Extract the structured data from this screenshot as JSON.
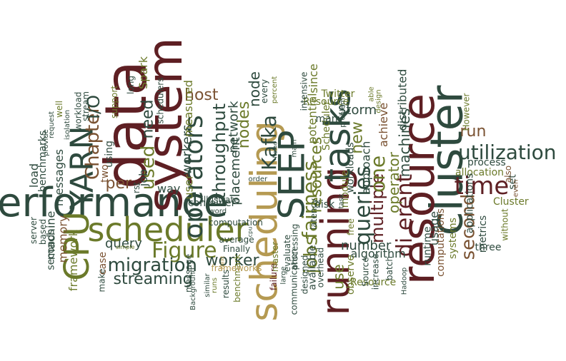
{
  "palette": {
    "dark_green": "#2e4a3e",
    "olive": "#6b7a2a",
    "gold": "#b59a52",
    "maroon": "#5e1f23",
    "brown": "#7a5232",
    "light_gold": "#c9b06a"
  },
  "words": [
    {
      "id": "performance",
      "text": "performance"
    },
    {
      "id": "scheduler",
      "text": "scheduler"
    },
    {
      "id": "system",
      "text": "system"
    },
    {
      "id": "data",
      "text": "data"
    },
    {
      "id": "cluster",
      "text": "cluster"
    },
    {
      "id": "resource",
      "text": "resource"
    },
    {
      "id": "scheduling",
      "text": "scheduling"
    },
    {
      "id": "running",
      "text": "running"
    },
    {
      "id": "SEEP",
      "text": "SEEP"
    },
    {
      "id": "tasks",
      "text": "tasks"
    },
    {
      "id": "CPU",
      "text": "CPU"
    },
    {
      "id": "YARN",
      "text": "YARN"
    },
    {
      "id": "utilization",
      "text": "utilization"
    },
    {
      "id": "time",
      "text": "time"
    },
    {
      "id": "operators",
      "text": "operators"
    },
    {
      "id": "Figure",
      "text": "Figure"
    },
    {
      "id": "migration",
      "text": "migration"
    },
    {
      "id": "Chapter",
      "text": "Chapter"
    },
    {
      "id": "I/O",
      "text": "I/O"
    },
    {
      "id": "queries",
      "text": "queries"
    },
    {
      "id": "jobs",
      "text": "jobs"
    },
    {
      "id": "fairness",
      "text": "fairness"
    },
    {
      "id": "Kafka",
      "text": "Kafka"
    },
    {
      "id": "throughput",
      "text": "throughput"
    },
    {
      "id": "di_erent",
      "text": "di erent"
    },
    {
      "id": "multiple",
      "text": "multiple"
    },
    {
      "id": "one",
      "text": "one"
    },
    {
      "id": "used",
      "text": "used"
    },
    {
      "id": "second",
      "text": "second"
    },
    {
      "id": "run",
      "text": "run"
    },
    {
      "id": "streaming",
      "text": "streaming"
    },
    {
      "id": "query",
      "text": "query"
    },
    {
      "id": "worker",
      "text": "worker"
    },
    {
      "id": "host",
      "text": "host"
    },
    {
      "id": "nodes",
      "text": "nodes"
    },
    {
      "id": "node",
      "text": "node"
    },
    {
      "id": "new",
      "text": "new"
    },
    {
      "id": "Storm",
      "text": "Storm"
    },
    {
      "id": "per",
      "text": "per"
    },
    {
      "id": "need",
      "text": "need"
    },
    {
      "id": "resources",
      "text": "resources"
    },
    {
      "id": "operator",
      "text": "operator"
    },
    {
      "id": "machines",
      "text": "machines"
    },
    {
      "id": "number",
      "text": "number"
    },
    {
      "id": "use",
      "text": "use"
    },
    {
      "id": "placement",
      "text": "placement"
    },
    {
      "id": "network",
      "text": "network"
    },
    {
      "id": "workers",
      "text": "workers"
    },
    {
      "id": "measured",
      "text": "measured"
    },
    {
      "id": "user",
      "text": "user"
    },
    {
      "id": "distributed",
      "text": "distributed"
    },
    {
      "id": "achieve",
      "text": "achieve"
    },
    {
      "id": "approach",
      "text": "approach"
    },
    {
      "id": "workloads",
      "text": "workloads"
    },
    {
      "id": "potential",
      "text": "potential"
    },
    {
      "id": "since",
      "text": "since"
    },
    {
      "id": "Resource_mid",
      "text": "Resource"
    },
    {
      "id": "Resource_bot",
      "text": "Resource"
    },
    {
      "id": "Scheduler",
      "text": "Scheduler"
    },
    {
      "id": "Twitter",
      "text": "Twitter"
    },
    {
      "id": "process",
      "text": "process"
    },
    {
      "id": "allocation",
      "text": "allocation"
    },
    {
      "id": "usage",
      "text": "usage"
    },
    {
      "id": "metrics",
      "text": "metrics"
    },
    {
      "id": "three",
      "text": "three"
    },
    {
      "id": "applications",
      "text": "applications"
    },
    {
      "id": "Cluster",
      "text": "Cluster"
    },
    {
      "id": "However",
      "text": "However"
    },
    {
      "id": "computations",
      "text": "computations"
    },
    {
      "id": "systems",
      "text": "systems"
    },
    {
      "id": "set",
      "text": "set"
    },
    {
      "id": "also",
      "text": "also"
    },
    {
      "id": "without",
      "text": "without"
    },
    {
      "id": "even",
      "text": "even"
    },
    {
      "id": "runtime",
      "text": "runtime"
    },
    {
      "id": "algorithm",
      "text": "algorithm"
    },
    {
      "id": "observe",
      "text": "observe"
    },
    {
      "id": "Source",
      "text": "Source"
    },
    {
      "id": "increase",
      "text": "increase"
    },
    {
      "id": "batch",
      "text": "batch"
    },
    {
      "id": "Hadoop",
      "text": "Hadoop"
    },
    {
      "id": "disk",
      "text": "disk"
    },
    {
      "id": "available",
      "text": "available"
    },
    {
      "id": "failure",
      "text": "failure"
    },
    {
      "id": "overhead",
      "text": "overhead"
    },
    {
      "id": "master",
      "text": "master"
    },
    {
      "id": "evaluate",
      "text": "evaluate"
    },
    {
      "id": "large",
      "text": "large"
    },
    {
      "id": "processing",
      "text": "processing"
    },
    {
      "id": "communication",
      "text": "communication"
    },
    {
      "id": "designed",
      "text": "designed"
    },
    {
      "id": "main",
      "text": "main"
    },
    {
      "id": "latency",
      "text": "latency"
    },
    {
      "id": "many",
      "text": "many"
    },
    {
      "id": "module",
      "text": "module"
    },
    {
      "id": "intensive",
      "text": "intensive"
    },
    {
      "id": "free",
      "text": "free"
    },
    {
      "id": "task",
      "text": "task"
    },
    {
      "id": "problem",
      "text": "problem"
    },
    {
      "id": "able",
      "text": "able"
    },
    {
      "id": "design",
      "text": "design"
    },
    {
      "id": "percent",
      "text": "percent"
    },
    {
      "id": "Naiad",
      "text": "Naiad"
    },
    {
      "id": "every",
      "text": "every"
    },
    {
      "id": "order",
      "text": "order"
    },
    {
      "id": "Finally",
      "text": "Finally"
    },
    {
      "id": "average",
      "text": "average"
    },
    {
      "id": "computation",
      "text": "computation"
    },
    {
      "id": "word",
      "text": "word"
    },
    {
      "id": "container",
      "text": "container"
    },
    {
      "id": "illustrate",
      "text": "illustrate"
    },
    {
      "id": "cpu",
      "text": "cpu"
    },
    {
      "id": "Next",
      "text": "Next"
    },
    {
      "id": "benchmark",
      "text": "benchmark"
    },
    {
      "id": "frameworks",
      "text": "frameworks"
    },
    {
      "id": "results",
      "text": "results"
    },
    {
      "id": "runs",
      "text": "runs"
    },
    {
      "id": "similar",
      "text": "similar"
    },
    {
      "id": "Background",
      "text": "Background"
    },
    {
      "id": "message",
      "text": "message"
    },
    {
      "id": "way",
      "text": "way"
    },
    {
      "id": "job",
      "text": "job"
    },
    {
      "id": "rst",
      "text": "rst"
    },
    {
      "id": "schedulers",
      "text": "schedulers"
    },
    {
      "id": "Spark",
      "text": "Spark"
    },
    {
      "id": "long",
      "text": "long"
    },
    {
      "id": "support",
      "text": "support"
    },
    {
      "id": "using",
      "text": "using"
    },
    {
      "id": "two",
      "text": "two"
    },
    {
      "id": "stream",
      "text": "stream"
    },
    {
      "id": "workload",
      "text": "workload"
    },
    {
      "id": "isolation",
      "text": "isolation"
    },
    {
      "id": "well",
      "text": "well"
    },
    {
      "id": "request",
      "text": "request"
    },
    {
      "id": "provide",
      "text": "provide"
    },
    {
      "id": "benchmarks",
      "text": "benchmarks"
    },
    {
      "id": "messages",
      "text": "messages"
    },
    {
      "id": "load",
      "text": "load"
    },
    {
      "id": "machine",
      "text": "machine"
    },
    {
      "id": "memory",
      "text": "memory"
    },
    {
      "id": "framework",
      "text": "framework"
    },
    {
      "id": "seconds",
      "text": "seconds"
    },
    {
      "id": "based",
      "text": "based"
    },
    {
      "id": "server",
      "text": "server"
    },
    {
      "id": "make",
      "text": "make"
    },
    {
      "id": "case",
      "text": "case"
    },
    {
      "id": "simple",
      "text": "simple"
    }
  ]
}
